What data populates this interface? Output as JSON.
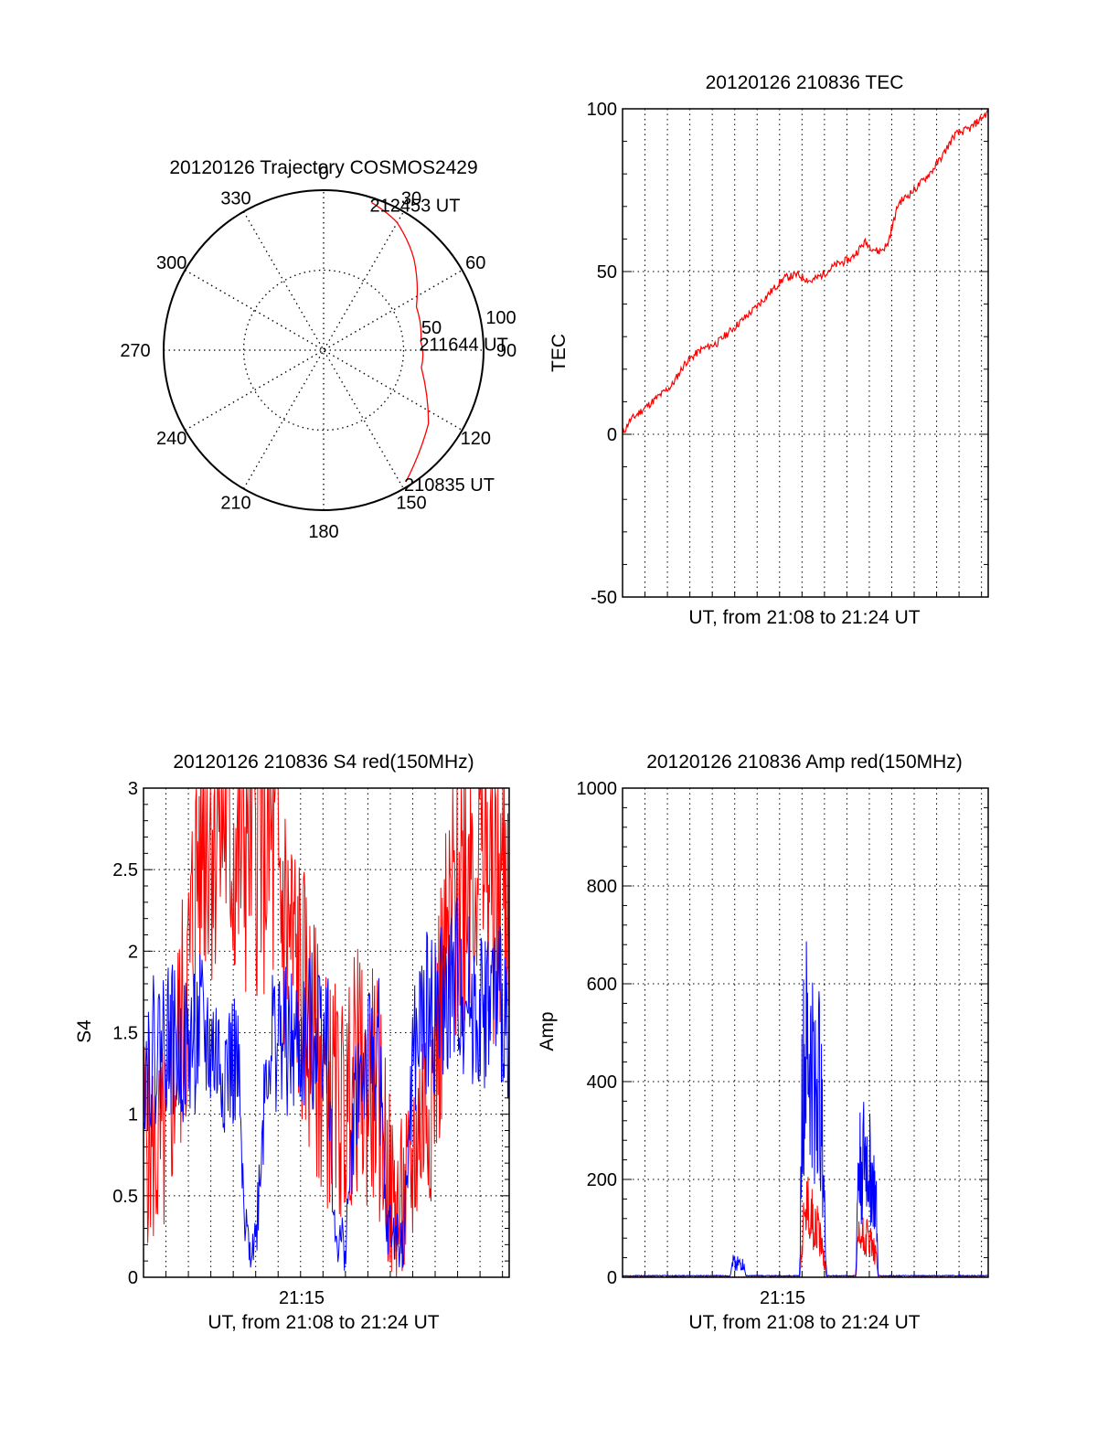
{
  "colors": {
    "red": "#ff0000",
    "blue": "#0000ff",
    "axis": "#000000",
    "grid": "#000000"
  },
  "chart_data": [
    {
      "id": "trajectory",
      "type": "polar",
      "title": "20120126 Trajectory COSMOS2429",
      "angle_labels": [
        "0",
        "30",
        "60",
        "90",
        "120",
        "150",
        "180",
        "210",
        "240",
        "270",
        "300",
        "330"
      ],
      "radial_labels": [
        "50",
        "100"
      ],
      "radius_max": 100,
      "grid": true,
      "series": [
        {
          "color": "#ff0000",
          "points": [
            {
              "azimuth": 148,
              "radius": 97,
              "label": "210835 UT"
            },
            {
              "azimuth": 125,
              "radius": 80
            },
            {
              "azimuth": 100,
              "radius": 62
            },
            {
              "azimuth": 85,
              "radius": 61,
              "label": "211644 UT"
            },
            {
              "azimuth": 65,
              "radius": 64
            },
            {
              "azimuth": 45,
              "radius": 80
            },
            {
              "azimuth": 30,
              "radius": 92
            },
            {
              "azimuth": 18,
              "radius": 97,
              "label": "212453 UT"
            }
          ]
        }
      ]
    },
    {
      "id": "tec",
      "type": "line",
      "title": "20120126 210836 TEC",
      "ylabel": "TEC",
      "xlabel": "UT, from 21:08 to 21:24 UT",
      "ylim": [
        -50,
        100
      ],
      "yticks": [
        "-50",
        "0",
        "50",
        "100"
      ],
      "xlim": [
        0,
        16.3
      ],
      "grid": true,
      "series": [
        {
          "color": "#ff0000",
          "x": [
            0,
            0.3,
            0.8,
            1.5,
            2.2,
            2.8,
            3.5,
            4.2,
            5.0,
            5.8,
            6.5,
            7.2,
            7.8,
            8.4,
            8.9,
            9.5,
            10.2,
            10.8,
            11.2,
            11.4,
            11.8,
            12.3,
            13.0,
            13.8,
            14.3,
            14.8,
            15.5,
            16.3
          ],
          "y": [
            0,
            4,
            7,
            11,
            15,
            22,
            26,
            28,
            33,
            38,
            43,
            48,
            49,
            47,
            49,
            52,
            54,
            59,
            57,
            56,
            58,
            71,
            75,
            81,
            86,
            92,
            94,
            99
          ]
        }
      ]
    },
    {
      "id": "s4",
      "type": "line",
      "title": "20120126 210836 S4 red(150MHz)",
      "ylabel": "S4",
      "xlabel": "UT, from 21:08 to 21:24 UT",
      "xtick_label": "21:15",
      "xtick_value": 7,
      "ylim": [
        0,
        3
      ],
      "yticks": [
        "0",
        "0.5",
        "1",
        "1.5",
        "2",
        "2.5",
        "3"
      ],
      "xlim": [
        0,
        16.3
      ],
      "grid": true,
      "series": [
        {
          "color": "#ff0000",
          "x": [
            0,
            0.5,
            1.0,
            1.3,
            2.0,
            2.6,
            3.0,
            3.6,
            4.2,
            4.8,
            5.4,
            5.9,
            6.3,
            6.8,
            7.3,
            7.6,
            8.0,
            8.5,
            9.0,
            9.5,
            9.9,
            10.3,
            10.7,
            11.0,
            11.4,
            11.8,
            12.2,
            12.8,
            13.4,
            14.0,
            14.6,
            15.2,
            15.8,
            16.3
          ],
          "y": [
            0.9,
            0.75,
            0.8,
            1.2,
            1.8,
            2.9,
            2.95,
            2.9,
            2.6,
            2.95,
            2.8,
            2.5,
            2.2,
            1.9,
            1.6,
            1.4,
            1.2,
            1.1,
            1.0,
            1.3,
            1.1,
            1.2,
            0.9,
            0.5,
            0.4,
            0.5,
            0.9,
            1.2,
            1.8,
            2.4,
            2.8,
            2.6,
            2.4,
            2.5
          ]
        },
        {
          "color": "#0000ff",
          "x": [
            0,
            0.5,
            1.0,
            1.5,
            2.0,
            2.5,
            3.0,
            3.5,
            4.2,
            4.5,
            5.0,
            5.5,
            6.0,
            6.5,
            7.0,
            7.5,
            7.8,
            8.2,
            8.5,
            9.0,
            9.5,
            10.0,
            10.5,
            10.8,
            11.2,
            11.6,
            12.0,
            12.5,
            13.0,
            13.5,
            14.0,
            14.5,
            15.0,
            15.5,
            16.3
          ],
          "y": [
            1.3,
            1.4,
            1.5,
            1.4,
            1.4,
            1.5,
            1.4,
            1.3,
            1.3,
            0.25,
            0.22,
            1.4,
            1.5,
            1.4,
            1.4,
            1.5,
            1.6,
            1.6,
            0.25,
            0.2,
            1.2,
            1.3,
            1.4,
            0.3,
            0.25,
            0.2,
            1.3,
            1.6,
            1.6,
            1.7,
            1.8,
            1.7,
            1.6,
            1.7,
            1.6
          ]
        }
      ]
    },
    {
      "id": "amp",
      "type": "line",
      "title": "20120126 210836 Amp red(150MHz)",
      "ylabel": "Amp",
      "xlabel": "UT, from 21:08 to 21:24 UT",
      "xtick_label": "21:15",
      "xtick_value": 7,
      "ylim": [
        0,
        1000
      ],
      "yticks": [
        "0",
        "200",
        "400",
        "600",
        "800",
        "1000"
      ],
      "xlim": [
        0,
        16.3
      ],
      "grid": true,
      "series": [
        {
          "color": "#ff0000",
          "x": [
            0,
            7.9,
            8.0,
            8.2,
            8.5,
            8.8,
            9.1,
            10.4,
            10.5,
            10.8,
            11.1,
            11.3,
            11.4,
            16.3
          ],
          "y": [
            0,
            0,
            80,
            140,
            120,
            90,
            0,
            0,
            80,
            90,
            70,
            40,
            0,
            0
          ]
        },
        {
          "color": "#0000ff",
          "x": [
            0,
            4.8,
            4.9,
            5.4,
            5.5,
            7.9,
            8.0,
            8.2,
            8.5,
            8.8,
            9.1,
            10.4,
            10.5,
            10.8,
            11.1,
            11.3,
            11.4,
            16.3
          ],
          "y": [
            3,
            3,
            30,
            25,
            3,
            3,
            380,
            450,
            420,
            400,
            3,
            3,
            220,
            250,
            210,
            150,
            3,
            3
          ]
        }
      ]
    }
  ]
}
